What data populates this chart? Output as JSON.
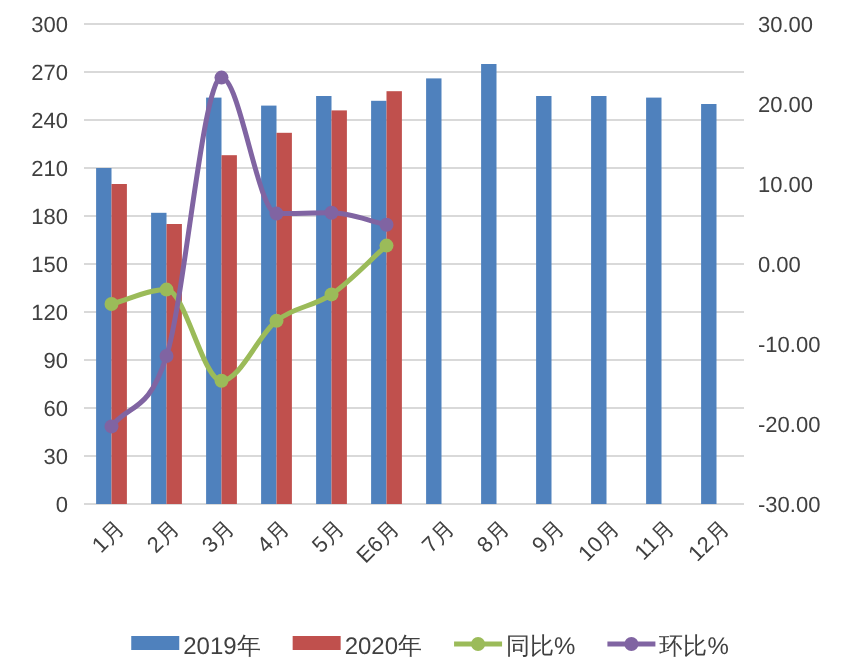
{
  "chart_data": {
    "type": "bar",
    "categories": [
      "1月",
      "2月",
      "3月",
      "4月",
      "5月",
      "E6月",
      "7月",
      "8月",
      "9月",
      "10月",
      "11月",
      "12月"
    ],
    "series": [
      {
        "name": "2019年",
        "color": "#4f81bd",
        "values": [
          210,
          182,
          254,
          249,
          255,
          252,
          266,
          275,
          255,
          255,
          254,
          250
        ]
      },
      {
        "name": "2020年",
        "color": "#c0504d",
        "values": [
          200,
          175,
          218,
          232,
          246,
          258,
          null,
          null,
          null,
          null,
          null,
          null
        ]
      },
      {
        "name": "同比%",
        "type": "line",
        "axis": "y2",
        "color": "#9bbb59",
        "values": [
          -5.0,
          -3.2,
          -14.6,
          -7.1,
          -3.8,
          2.3,
          null,
          null,
          null,
          null,
          null,
          null
        ]
      },
      {
        "name": "环比%",
        "type": "line",
        "axis": "y2",
        "color": "#8064a2",
        "values": [
          -20.3,
          -11.5,
          23.3,
          6.3,
          6.4,
          4.9,
          null,
          null,
          null,
          null,
          null,
          null
        ]
      }
    ],
    "ylim": [
      0,
      300
    ],
    "yticks": [
      0,
      30,
      60,
      90,
      120,
      150,
      180,
      210,
      240,
      270,
      300
    ],
    "y2lim": [
      -30,
      30
    ],
    "y2ticks": [
      {
        "value": -30,
        "label": "-30.00"
      },
      {
        "value": -20,
        "label": "-20.00"
      },
      {
        "value": -10,
        "label": "-10.00"
      },
      {
        "value": 0,
        "label": "0.00"
      },
      {
        "value": 10,
        "label": "10.00"
      },
      {
        "value": 20,
        "label": "20.00"
      },
      {
        "value": 30,
        "label": "30.00"
      }
    ],
    "grid": "y",
    "legend": "bottom",
    "marker": "circle",
    "line_style": "solid"
  }
}
